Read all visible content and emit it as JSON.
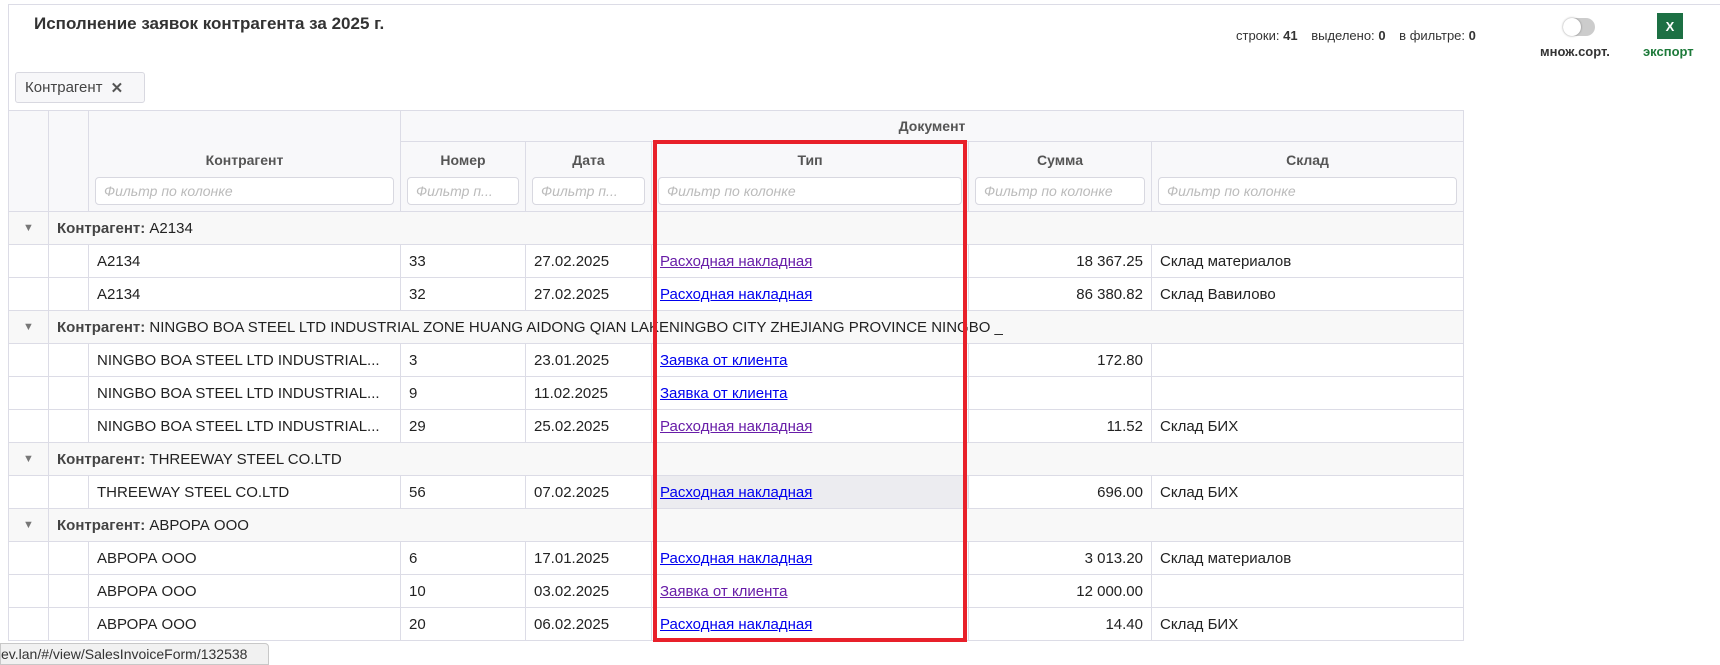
{
  "title": "Исполнение заявок контрагента за 2025 г.",
  "group_chip": "Контрагент",
  "stats": {
    "rows_label": "строки:",
    "rows": "41",
    "selected_label": "выделено:",
    "selected": "0",
    "filtered_label": "в фильтре:",
    "filtered": "0"
  },
  "multisort": {
    "label": "множ.сорт.",
    "enabled": false
  },
  "export": {
    "label": "экспорт",
    "icon": "X",
    "color": "#1d7044"
  },
  "columns": {
    "group_header": "Документ",
    "counterparty": "Контрагент",
    "number": "Номер",
    "date": "Дата",
    "type": "Тип",
    "sum": "Сумма",
    "warehouse": "Склад"
  },
  "filters": {
    "counterparty": "Фильтр по колонке",
    "number": "Фильтр п...",
    "date": "Фильтр п...",
    "type": "Фильтр по колонке",
    "sum": "Фильтр по колонке",
    "warehouse": "Фильтр по колонке"
  },
  "group_label": "Контрагент:",
  "groups": [
    {
      "name": "A2134",
      "rows": [
        {
          "counterparty": "A2134",
          "number": "33",
          "date": "27.02.2025",
          "type": "Расходная накладная",
          "visited": true,
          "sum": "18 367.25",
          "warehouse": "Склад материалов"
        },
        {
          "counterparty": "A2134",
          "number": "32",
          "date": "27.02.2025",
          "type": "Расходная накладная",
          "visited": false,
          "sum": "86 380.82",
          "warehouse": "Склад Вавилово"
        }
      ]
    },
    {
      "name": "NINGBO BOA STEEL LTD INDUSTRIAL ZONE HUANG AIDONG QIAN LAKENINGBO CITY ZHEJIANG PROVINCE NINGBO _",
      "rows": [
        {
          "counterparty": "NINGBO BOA STEEL LTD INDUSTRIAL...",
          "number": "3",
          "date": "23.01.2025",
          "type": "Заявка от клиента",
          "visited": false,
          "sum": "172.80",
          "warehouse": ""
        },
        {
          "counterparty": "NINGBO BOA STEEL LTD INDUSTRIAL...",
          "number": "9",
          "date": "11.02.2025",
          "type": "Заявка от клиента",
          "visited": false,
          "sum": "",
          "warehouse": ""
        },
        {
          "counterparty": "NINGBO BOA STEEL LTD INDUSTRIAL...",
          "number": "29",
          "date": "25.02.2025",
          "type": "Расходная накладная",
          "visited": true,
          "sum": "11.52",
          "warehouse": "Склад БИХ"
        }
      ]
    },
    {
      "name": "THREEWAY STEEL CO.LTD",
      "rows": [
        {
          "counterparty": "THREEWAY STEEL CO.LTD",
          "number": "56",
          "date": "07.02.2025",
          "type": "Расходная накладная",
          "visited": false,
          "hover": true,
          "sum": "696.00",
          "warehouse": "Склад БИХ"
        }
      ]
    },
    {
      "name": "АВРОРА ООО",
      "rows": [
        {
          "counterparty": "АВРОРА ООО",
          "number": "6",
          "date": "17.01.2025",
          "type": "Расходная накладная",
          "visited": false,
          "sum": "3 013.20",
          "warehouse": "Склад материалов"
        },
        {
          "counterparty": "АВРОРА ООО",
          "number": "10",
          "date": "03.02.2025",
          "type": "Заявка от клиента",
          "visited": true,
          "sum": "12 000.00",
          "warehouse": ""
        },
        {
          "counterparty": "АВРОРА ООО",
          "number": "20",
          "date": "06.02.2025",
          "type": "Расходная накладная",
          "visited": false,
          "sum": "14.40",
          "warehouse": "Склад БИХ"
        }
      ]
    }
  ],
  "status_url": "ev.lan/#/view/SalesInvoiceForm/132538",
  "highlight_color": "#e8202a"
}
